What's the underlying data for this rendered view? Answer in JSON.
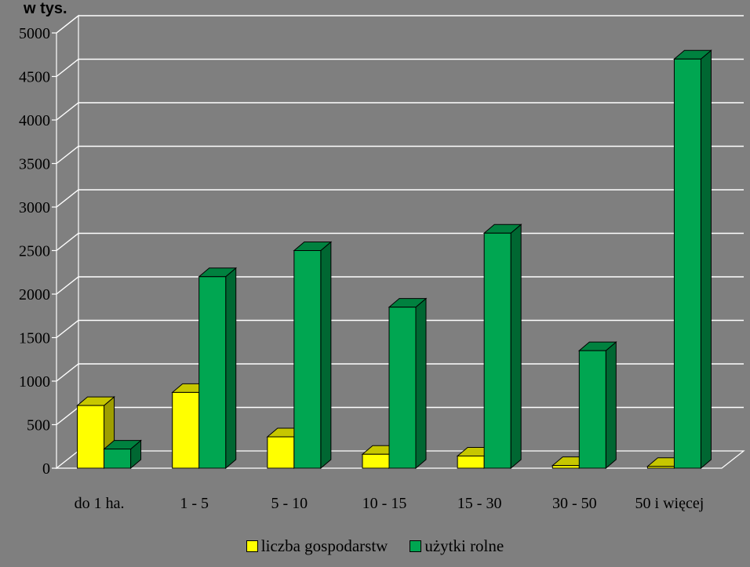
{
  "chart_data": {
    "type": "bar",
    "unit_label": "w tys.",
    "categories": [
      "do 1 ha.",
      "1 - 5",
      "5 - 10",
      "10 - 15",
      "15 - 30",
      "30 - 50",
      "50 i więcej"
    ],
    "series": [
      {
        "name": "liczba gospodarstw",
        "color": "#ffff00",
        "values": [
          720,
          870,
          360,
          160,
          140,
          30,
          20
        ]
      },
      {
        "name": "użytki rolne",
        "color": "#00a651",
        "values": [
          220,
          2200,
          2500,
          1850,
          2700,
          1350,
          4700
        ]
      }
    ],
    "ylim": [
      0,
      5000
    ],
    "yticks": [
      0,
      500,
      1000,
      1500,
      2000,
      2500,
      3000,
      3500,
      4000,
      4500,
      5000
    ],
    "grid": true,
    "legend_position": "bottom"
  }
}
